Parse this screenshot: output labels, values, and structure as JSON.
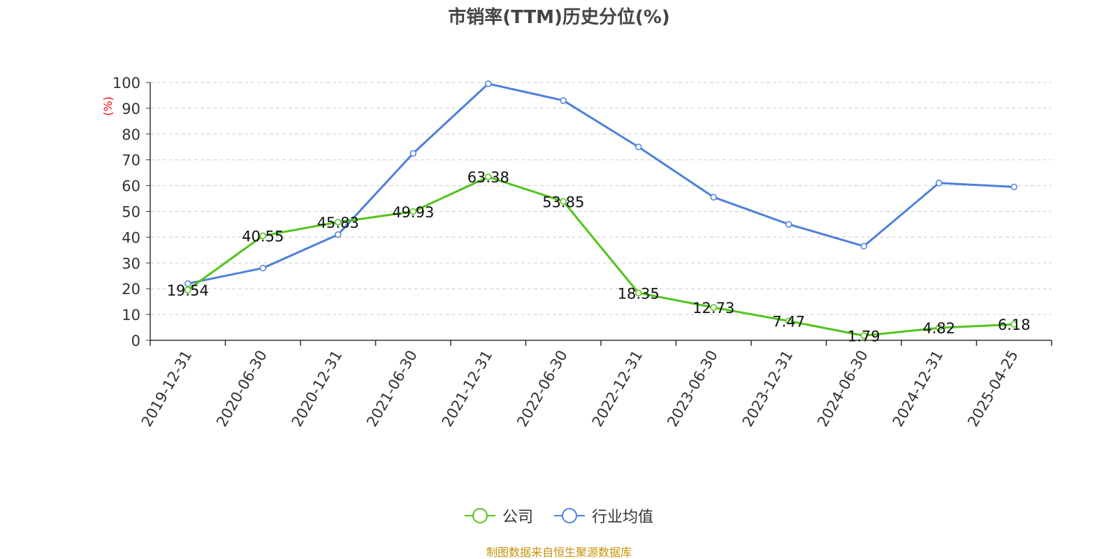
{
  "title": "市销率(TTM)历史分位(%)",
  "source": "制图数据来自恒生聚源数据库",
  "colors": {
    "company": "#52c41a",
    "industry": "#4e80dd",
    "ylabel": "#ff0000",
    "source": "#c8920a"
  },
  "chart_data": {
    "type": "line",
    "title": "市销率(TTM)历史分位(%)",
    "ylabel": "(%)",
    "ylim": [
      0,
      100
    ],
    "yticks": [
      0,
      10,
      20,
      30,
      40,
      50,
      60,
      70,
      80,
      90,
      100
    ],
    "grid": true,
    "legend_position": "bottom",
    "categories": [
      "2019-12-31",
      "2020-06-30",
      "2020-12-31",
      "2021-06-30",
      "2021-12-31",
      "2022-06-30",
      "2022-12-31",
      "2023-06-30",
      "2023-12-31",
      "2024-06-30",
      "2024-12-31",
      "2025-04-25"
    ],
    "series": [
      {
        "name": "公司",
        "color": "#52c41a",
        "show_labels": true,
        "values": [
          19.54,
          40.55,
          45.83,
          49.93,
          63.38,
          53.85,
          18.35,
          12.73,
          7.47,
          1.79,
          4.82,
          6.18
        ]
      },
      {
        "name": "行业均值",
        "color": "#4e80dd",
        "show_labels": false,
        "values": [
          22,
          28,
          41,
          72.5,
          99.5,
          93,
          75,
          55.5,
          45,
          36.5,
          61,
          59.5
        ]
      }
    ]
  }
}
